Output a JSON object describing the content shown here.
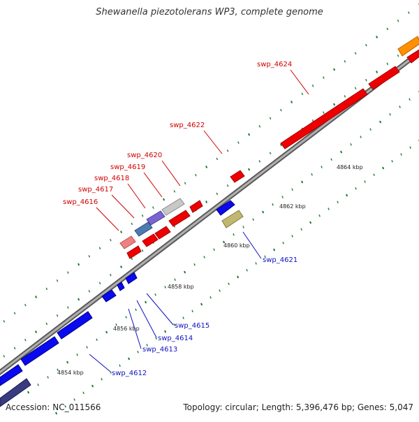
{
  "title": "Shewanella piezotolerans WP3, complete genome",
  "footer": {
    "accession": "Accession: NC_011566",
    "summary": "Topology: circular; Length: 5,396,476 bp; Genes: 5,047"
  },
  "colors": {
    "forward_cds": "#f00000",
    "reverse_cds": "#0a0af0",
    "backbone": "#8c8c8c",
    "tick": "#1e7a2e",
    "label_forward": "#d00000",
    "label_reverse": "#1010c0"
  },
  "ticks": [
    {
      "label": "4854 kbp"
    },
    {
      "label": "4856 kbp"
    },
    {
      "label": "4858 kbp"
    },
    {
      "label": "4860 kbp"
    },
    {
      "label": "4862 kbp"
    },
    {
      "label": "4864 kbp"
    }
  ],
  "gene_labels": [
    {
      "label": "swp_4612",
      "strand": "reverse"
    },
    {
      "label": "swp_4613",
      "strand": "reverse"
    },
    {
      "label": "swp_4614",
      "strand": "reverse"
    },
    {
      "label": "swp_4615",
      "strand": "reverse"
    },
    {
      "label": "swp_4616",
      "strand": "forward"
    },
    {
      "label": "swp_4617",
      "strand": "forward"
    },
    {
      "label": "swp_4618",
      "strand": "forward"
    },
    {
      "label": "swp_4619",
      "strand": "forward"
    },
    {
      "label": "swp_4620",
      "strand": "forward"
    },
    {
      "label": "swp_4621",
      "strand": "reverse"
    },
    {
      "label": "swp_4622",
      "strand": "forward"
    },
    {
      "label": "swp_4624",
      "strand": "forward"
    }
  ]
}
